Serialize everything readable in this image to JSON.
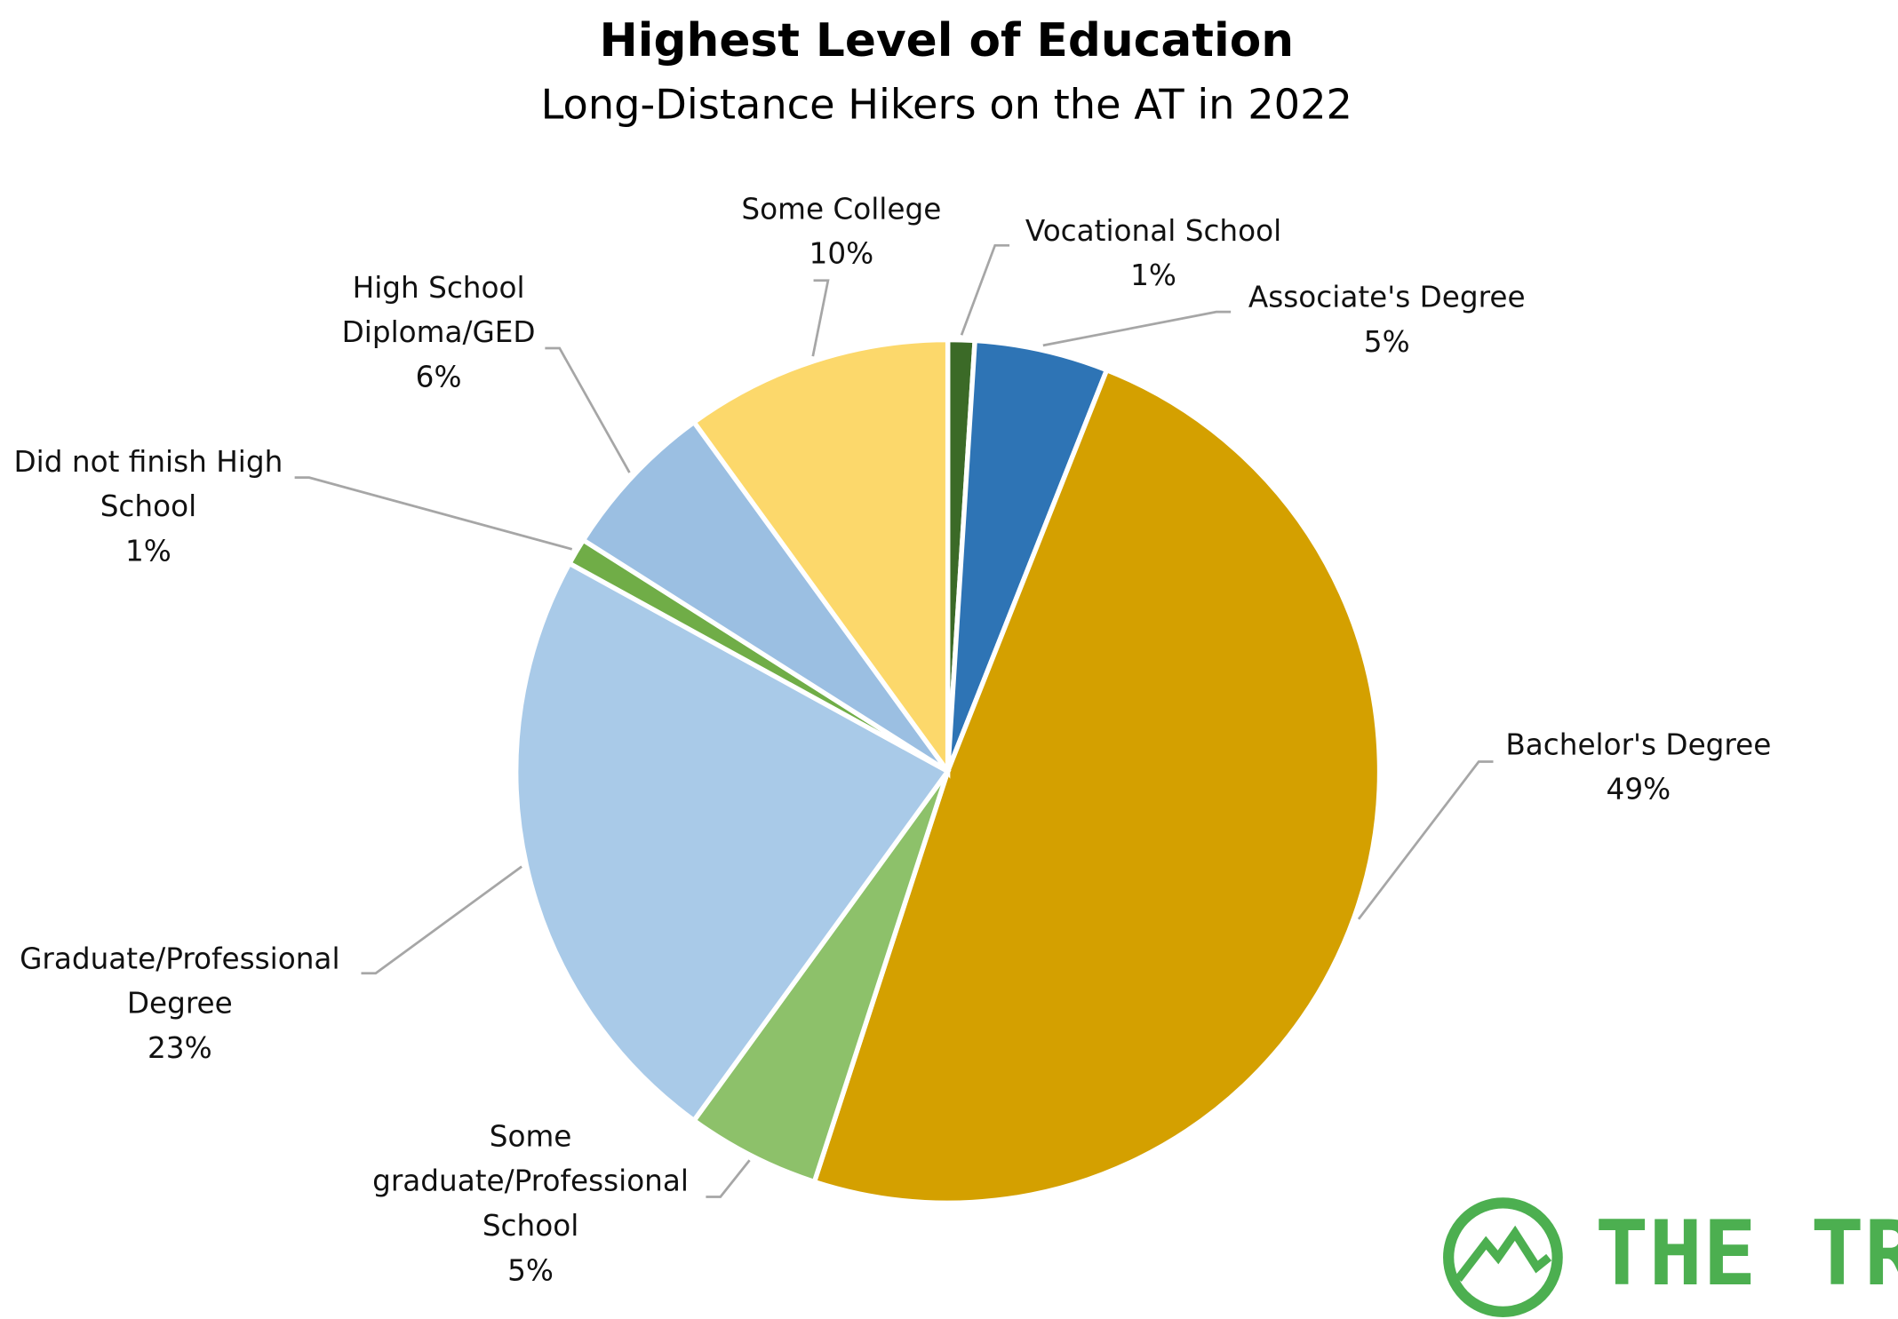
{
  "chart_data": {
    "type": "pie",
    "title": "Highest Level of Education",
    "subtitle": "Long-Distance Hikers on the AT in 2022",
    "categories": [
      "Vocational School",
      "Associate's Degree",
      "Bachelor's Degree",
      "Some graduate/Professional School",
      "Graduate/Professional Degree",
      "Did not finish High School",
      "High School Diploma/GED",
      "Some College"
    ],
    "values": [
      1,
      5,
      49,
      5,
      23,
      1,
      6,
      10
    ],
    "value_labels": [
      "1%",
      "5%",
      "49%",
      "5%",
      "23%",
      "1%",
      "6%",
      "10%"
    ],
    "colors": [
      "#3b6a27",
      "#2e74b5",
      "#d4a000",
      "#8dc16a",
      "#a9cae8",
      "#70ad47",
      "#9bbfe2",
      "#fcd86b"
    ],
    "logo": "THE TREK"
  }
}
